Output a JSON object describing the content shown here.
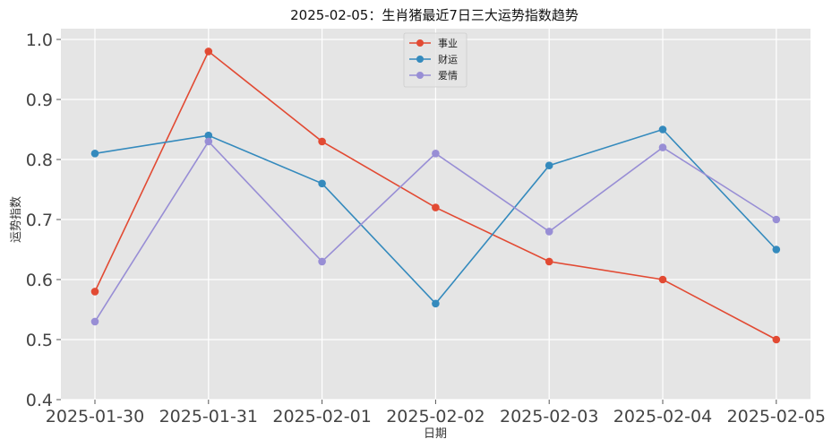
{
  "chart_data": {
    "type": "line",
    "title": "2025-02-05：生肖猪最近7日三大运势指数趋势",
    "xlabel": "日期",
    "ylabel": "运势指数",
    "categories": [
      "2025-01-30",
      "2025-01-31",
      "2025-02-01",
      "2025-02-02",
      "2025-02-03",
      "2025-02-04",
      "2025-02-05"
    ],
    "y_ticks": [
      "0.4",
      "0.5",
      "0.6",
      "0.7",
      "0.8",
      "0.9",
      "1.0"
    ],
    "ylim": [
      0.4,
      1.0
    ],
    "grid": true,
    "legend_position": "top-center",
    "series": [
      {
        "name": "事业",
        "color": "#E24A33",
        "values": [
          0.58,
          0.98,
          0.83,
          0.72,
          0.63,
          0.6,
          0.5
        ]
      },
      {
        "name": "财运",
        "color": "#348ABD",
        "values": [
          0.81,
          0.84,
          0.76,
          0.56,
          0.79,
          0.85,
          0.65
        ]
      },
      {
        "name": "爱情",
        "color": "#988ED5",
        "values": [
          0.53,
          0.83,
          0.63,
          0.81,
          0.68,
          0.82,
          0.7
        ]
      }
    ]
  }
}
